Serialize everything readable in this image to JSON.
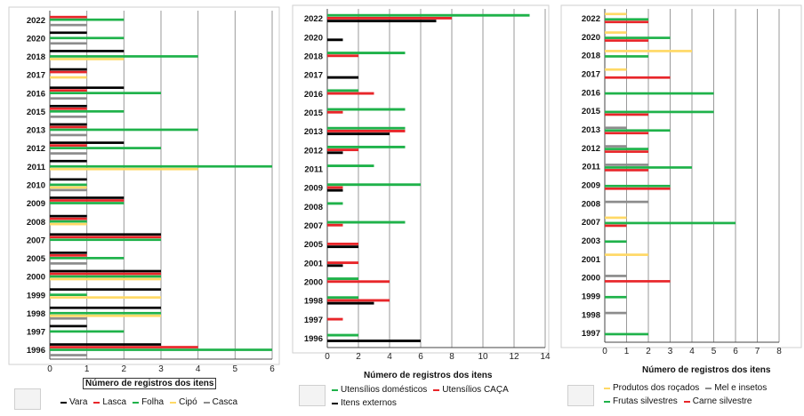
{
  "chart_data": [
    {
      "type": "bar",
      "orientation": "horizontal",
      "xlabel": "Número de registros dos itens",
      "xlim": [
        0,
        6
      ],
      "xticks": [
        0,
        1,
        2,
        3,
        4,
        5,
        6
      ],
      "grid": true,
      "legend_position": "bottom",
      "categories": [
        "2022",
        "2020",
        "2018",
        "2017",
        "2016",
        "2015",
        "2013",
        "2012",
        "2011",
        "2010",
        "2009",
        "2008",
        "2007",
        "2005",
        "2000",
        "1999",
        "1998",
        "1997",
        "1996"
      ],
      "series": [
        {
          "name": "Vara",
          "color": "#000000",
          "values": [
            0,
            1,
            2,
            1,
            2,
            1,
            1,
            2,
            1,
            1,
            2,
            1,
            3,
            1,
            3,
            3,
            3,
            1,
            3
          ]
        },
        {
          "name": "Lasca",
          "color": "#e8262a",
          "values": [
            1,
            0,
            0,
            1,
            1,
            1,
            1,
            1,
            0,
            0,
            2,
            1,
            3,
            1,
            3,
            0,
            0,
            0,
            4
          ]
        },
        {
          "name": "Folha",
          "color": "#1fb24a",
          "values": [
            2,
            2,
            4,
            0,
            3,
            2,
            4,
            3,
            6,
            1,
            2,
            1,
            3,
            2,
            3,
            1,
            3,
            2,
            6
          ]
        },
        {
          "name": "Cipó",
          "color": "#ffd966",
          "values": [
            0,
            0,
            2,
            1,
            0,
            0,
            0,
            0,
            4,
            1,
            0,
            1,
            0,
            0,
            3,
            3,
            3,
            0,
            0
          ]
        },
        {
          "name": "Casca",
          "color": "#8c8c8c",
          "values": [
            1,
            1,
            0,
            0,
            1,
            1,
            1,
            1,
            0,
            1,
            0,
            0,
            0,
            1,
            0,
            0,
            1,
            0,
            1
          ]
        }
      ]
    },
    {
      "type": "bar",
      "orientation": "horizontal",
      "xlabel": "Número de registros dos itens",
      "xlim": [
        0,
        14
      ],
      "xticks": [
        0,
        2,
        4,
        6,
        8,
        10,
        12,
        14
      ],
      "grid": true,
      "legend_position": "bottom",
      "categories": [
        "2022",
        "2020",
        "2018",
        "2017",
        "2016",
        "2015",
        "2013",
        "2012",
        "2011",
        "2009",
        "2008",
        "2007",
        "2005",
        "2001",
        "2000",
        "1998",
        "1997",
        "1996"
      ],
      "series": [
        {
          "name": "Utensílios domésticos",
          "color": "#1fb24a",
          "values": [
            13,
            0,
            5,
            0,
            2,
            5,
            5,
            5,
            3,
            6,
            1,
            5,
            0,
            0,
            2,
            2,
            0,
            2
          ]
        },
        {
          "name": "Utensílios CAÇA",
          "color": "#e8262a",
          "values": [
            8,
            0,
            2,
            0,
            3,
            1,
            5,
            2,
            0,
            1,
            0,
            1,
            2,
            2,
            4,
            4,
            1,
            0
          ]
        },
        {
          "name": "Itens externos",
          "color": "#000000",
          "values": [
            7,
            1,
            0,
            2,
            0,
            0,
            4,
            1,
            0,
            1,
            0,
            0,
            2,
            1,
            0,
            3,
            0,
            6
          ]
        }
      ]
    },
    {
      "type": "bar",
      "orientation": "horizontal",
      "xlabel": "Número de registros dos itens",
      "xlim": [
        0,
        8
      ],
      "xticks": [
        0,
        1,
        2,
        3,
        4,
        5,
        6,
        7,
        8
      ],
      "grid": true,
      "legend_position": "bottom",
      "categories": [
        "2022",
        "2020",
        "2018",
        "2017",
        "2016",
        "2015",
        "2013",
        "2012",
        "2011",
        "2009",
        "2008",
        "2007",
        "2003",
        "2001",
        "2000",
        "1999",
        "1998",
        "1997"
      ],
      "series": [
        {
          "name": "Produtos dos roçados",
          "color": "#ffd966",
          "values": [
            1,
            1,
            4,
            1,
            0,
            0,
            0,
            0,
            0,
            0,
            0,
            1,
            0,
            2,
            0,
            0,
            0,
            0
          ]
        },
        {
          "name": "Mel e insetos",
          "color": "#8c8c8c",
          "values": [
            0,
            0,
            0,
            0,
            0,
            0,
            1,
            1,
            2,
            0,
            2,
            0,
            0,
            0,
            1,
            0,
            1,
            0
          ]
        },
        {
          "name": "Frutas silvestres",
          "color": "#1fb24a",
          "values": [
            2,
            3,
            2,
            0,
            5,
            5,
            3,
            2,
            4,
            3,
            0,
            6,
            1,
            0,
            0,
            1,
            0,
            2
          ]
        },
        {
          "name": "Carne silvestre",
          "color": "#e8262a",
          "values": [
            2,
            2,
            0,
            3,
            0,
            2,
            2,
            2,
            2,
            3,
            0,
            1,
            0,
            0,
            3,
            0,
            0,
            0
          ]
        }
      ]
    }
  ]
}
